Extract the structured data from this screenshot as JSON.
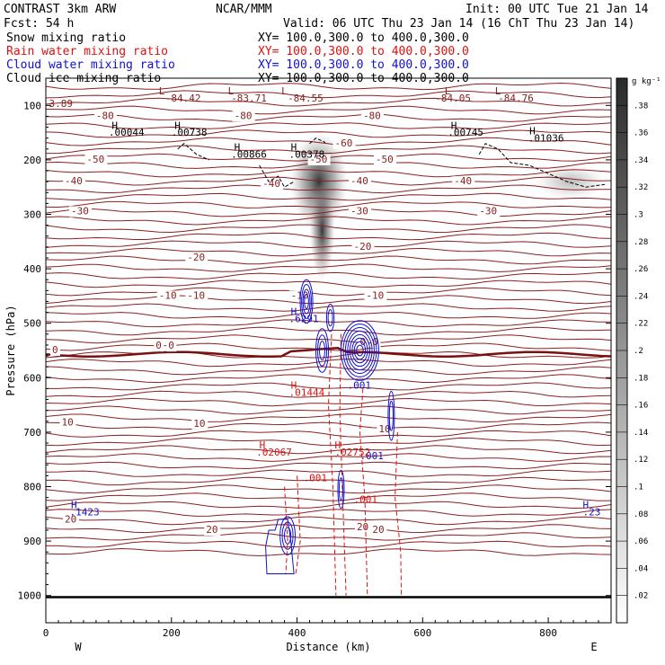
{
  "header": {
    "left_line1": "CONTRAST  3km ARW",
    "left_line2": "Fcst:   54 h",
    "center_line1": "NCAR/MMM",
    "init": "Init: 00 UTC Tue 21 Jan 14",
    "valid": "Valid: 06 UTC Thu 23 Jan 14 (16 ChT Thu 23 Jan 14)"
  },
  "legend": [
    {
      "label": "Snow mixing ratio",
      "xy": "XY= 100.0,300.0 to 400.0,300.0",
      "color": "#000000"
    },
    {
      "label": "Rain water mixing ratio",
      "xy": "XY= 100.0,300.0 to 400.0,300.0",
      "color": "#dd1111"
    },
    {
      "label": "Cloud water mixing ratio",
      "xy": "XY= 100.0,300.0 to 400.0,300.0",
      "color": "#1111cc"
    },
    {
      "label": "Cloud ice mixing ratio",
      "xy": "XY= 100.0,300.0 to 400.0,300.0",
      "color": "#000000"
    }
  ],
  "colors": {
    "temperature": "#8b2020",
    "zero_line": "#7a1010",
    "cloud_water": "#1111cc",
    "rain": "#dd1111",
    "ice": "#000000"
  },
  "chart_data": {
    "type": "cross-section contour",
    "xlabel": "Distance (km)",
    "ylabel": "Pressure (hPa)",
    "xlim": [
      0,
      900
    ],
    "ylim": [
      1050,
      50
    ],
    "x_ticks": [
      "0",
      "200",
      "400",
      "600",
      "800"
    ],
    "y_ticks": [
      "100",
      "200",
      "300",
      "400",
      "500",
      "600",
      "700",
      "800",
      "900",
      "1000"
    ],
    "direction_left": "W",
    "direction_right": "E",
    "colorbar": {
      "unit": "g kg⁻¹",
      "ticks": [
        ".02",
        ".04",
        ".06",
        ".08",
        ".1",
        ".12",
        ".14",
        ".16",
        ".18",
        ".2",
        ".22",
        ".24",
        ".26",
        ".28",
        ".3",
        ".32",
        ".34",
        ".36",
        ".38"
      ]
    },
    "temperature_labels": [
      {
        "text": "-80",
        "x": 80,
        "p": 125
      },
      {
        "text": "-80",
        "x": 300,
        "p": 125
      },
      {
        "text": "-80",
        "x": 505,
        "p": 125
      },
      {
        "text": "-60",
        "x": 460,
        "p": 175
      },
      {
        "text": "-50",
        "x": 65,
        "p": 205
      },
      {
        "text": "-50",
        "x": 420,
        "p": 205
      },
      {
        "text": "-50",
        "x": 525,
        "p": 205
      },
      {
        "text": "-40",
        "x": 30,
        "p": 245
      },
      {
        "text": "-40",
        "x": 485,
        "p": 245
      },
      {
        "text": "-40",
        "x": 650,
        "p": 245
      },
      {
        "text": "-40",
        "x": 345,
        "p": 250
      },
      {
        "text": "-30",
        "x": 40,
        "p": 300
      },
      {
        "text": "-30",
        "x": 485,
        "p": 300
      },
      {
        "text": "-30",
        "x": 690,
        "p": 300
      },
      {
        "text": "-20",
        "x": 225,
        "p": 385
      },
      {
        "text": "-20",
        "x": 490,
        "p": 365
      },
      {
        "text": "-10",
        "x": 180,
        "p": 455
      },
      {
        "text": "-10",
        "x": 225,
        "p": 455
      },
      {
        "text": "-10",
        "x": 390,
        "p": 455
      },
      {
        "text": "-10",
        "x": 510,
        "p": 455
      },
      {
        "text": "0",
        "x": 10,
        "p": 555
      },
      {
        "text": "0",
        "x": 175,
        "p": 547
      },
      {
        "text": "0",
        "x": 195,
        "p": 547
      },
      {
        "text": "0",
        "x": 500,
        "p": 540
      },
      {
        "text": "0",
        "x": 520,
        "p": 540
      },
      {
        "text": "10",
        "x": 25,
        "p": 688
      },
      {
        "text": "10",
        "x": 235,
        "p": 690
      },
      {
        "text": "10",
        "x": 530,
        "p": 700
      },
      {
        "text": "20",
        "x": 30,
        "p": 866
      },
      {
        "text": "20",
        "x": 255,
        "p": 885
      },
      {
        "text": "20",
        "x": 495,
        "p": 880
      },
      {
        "text": "20",
        "x": 520,
        "p": 885
      }
    ],
    "annotations": [
      {
        "text": "3.89",
        "x": 5,
        "p": 103,
        "color": "#8b2020"
      },
      {
        "text": "L",
        "x": 180,
        "p": 80,
        "color": "#8b2020"
      },
      {
        "text": "-84.42",
        "x": 190,
        "p": 93,
        "color": "#8b2020"
      },
      {
        "text": "L",
        "x": 290,
        "p": 80,
        "color": "#8b2020"
      },
      {
        "text": "-83.71",
        "x": 295,
        "p": 93,
        "color": "#8b2020"
      },
      {
        "text": "L",
        "x": 375,
        "p": 80,
        "color": "#8b2020"
      },
      {
        "text": "-84.55",
        "x": 385,
        "p": 93,
        "color": "#8b2020"
      },
      {
        "text": "L",
        "x": 635,
        "p": 80,
        "color": "#8b2020"
      },
      {
        "text": "-84.05",
        "x": 620,
        "p": 93,
        "color": "#8b2020"
      },
      {
        "text": "L",
        "x": 715,
        "p": 80,
        "color": "#8b2020"
      },
      {
        "text": "-84.76",
        "x": 720,
        "p": 93,
        "color": "#8b2020"
      },
      {
        "text": "H",
        "x": 105,
        "p": 143,
        "color": "#000000"
      },
      {
        "text": ".00044",
        "x": 100,
        "p": 156,
        "color": "#000000"
      },
      {
        "text": "H",
        "x": 205,
        "p": 143,
        "color": "#000000"
      },
      {
        "text": ".00738",
        "x": 200,
        "p": 156,
        "color": "#000000"
      },
      {
        "text": "H",
        "x": 300,
        "p": 183,
        "color": "#000000"
      },
      {
        "text": ".00866",
        "x": 295,
        "p": 196,
        "color": "#000000"
      },
      {
        "text": "H",
        "x": 390,
        "p": 183,
        "color": "#000000"
      },
      {
        "text": ".00378",
        "x": 387,
        "p": 196,
        "color": "#000000"
      },
      {
        "text": "H",
        "x": 645,
        "p": 143,
        "color": "#000000"
      },
      {
        "text": ".00745",
        "x": 640,
        "p": 156,
        "color": "#000000"
      },
      {
        "text": "H",
        "x": 770,
        "p": 153,
        "color": "#000000"
      },
      {
        "text": ".01036",
        "x": 768,
        "p": 166,
        "color": "#000000"
      },
      {
        "text": "H",
        "x": 390,
        "p": 485,
        "color": "#1111cc"
      },
      {
        "text": ".6291",
        "x": 387,
        "p": 498,
        "color": "#1111cc"
      },
      {
        "text": "H",
        "x": 390,
        "p": 620,
        "color": "#dd1111"
      },
      {
        "text": ".01444",
        "x": 387,
        "p": 633,
        "color": "#dd1111"
      },
      {
        "text": ".001",
        "x": 480,
        "p": 620,
        "color": "#1111cc"
      },
      {
        "text": ".001",
        "x": 500,
        "p": 750,
        "color": "#1111cc"
      },
      {
        "text": "H",
        "x": 340,
        "p": 730,
        "color": "#dd1111"
      },
      {
        "text": ".02067",
        "x": 335,
        "p": 743,
        "color": "#dd1111"
      },
      {
        "text": "H",
        "x": 460,
        "p": 730,
        "color": "#dd1111"
      },
      {
        "text": ".02752",
        "x": 460,
        "p": 743,
        "color": "#dd1111"
      },
      {
        "text": ".001",
        "x": 410,
        "p": 790,
        "color": "#dd1111"
      },
      {
        "text": ".001",
        "x": 490,
        "p": 830,
        "color": "#dd1111"
      },
      {
        "text": "H",
        "x": 40,
        "p": 840,
        "color": "#1111cc"
      },
      {
        "text": ".1423",
        "x": 38,
        "p": 853,
        "color": "#1111cc"
      },
      {
        "text": "H",
        "x": 855,
        "p": 840,
        "color": "#1111cc"
      },
      {
        "text": ".23",
        "x": 855,
        "p": 853,
        "color": "#1111cc"
      }
    ],
    "cloud_water_cores": [
      {
        "x": 415,
        "p": 460,
        "rx": 10,
        "rp": 40,
        "rings": 4
      },
      {
        "x": 500,
        "p": 550,
        "rx": 30,
        "rp": 55,
        "rings": 8
      },
      {
        "x": 453,
        "p": 490,
        "rx": 6,
        "rp": 25,
        "rings": 2
      },
      {
        "x": 440,
        "p": 550,
        "rx": 10,
        "rp": 40,
        "rings": 3
      },
      {
        "x": 550,
        "p": 670,
        "rx": 5,
        "rp": 45,
        "rings": 2
      },
      {
        "x": 470,
        "p": 805,
        "rx": 5,
        "rp": 35,
        "rings": 2
      },
      {
        "x": 385,
        "p": 890,
        "rx": 12,
        "rp": 35,
        "rings": 3
      }
    ]
  }
}
